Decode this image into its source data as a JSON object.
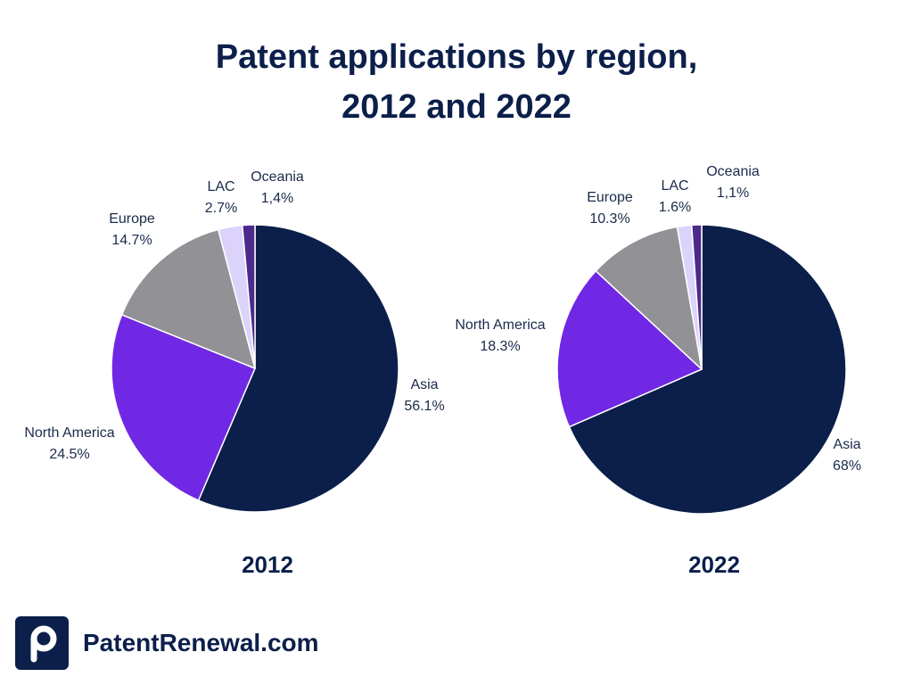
{
  "title_line1": "Patent applications by region,",
  "title_line2": "2012 and 2022",
  "brand": {
    "name": "PatentRenewal.com",
    "icon": "patentrenewal-logo-icon"
  },
  "colors": {
    "Asia": "#0b1f4a",
    "North America": "#7028e4",
    "Europe": "#919196",
    "LAC": "#dcd3fb",
    "Oceania": "#4b2a8c"
  },
  "chart_data": [
    {
      "type": "pie",
      "year_label": "2012",
      "slices": [
        {
          "name": "Asia",
          "value": 56.1,
          "label": "56.1%"
        },
        {
          "name": "North America",
          "value": 24.5,
          "label": "24.5%"
        },
        {
          "name": "Europe",
          "value": 14.7,
          "label": "14.7%"
        },
        {
          "name": "LAC",
          "value": 2.7,
          "label": "2.7%"
        },
        {
          "name": "Oceania",
          "value": 1.4,
          "label": "1,4%"
        }
      ]
    },
    {
      "type": "pie",
      "year_label": "2022",
      "slices": [
        {
          "name": "Asia",
          "value": 68,
          "label": "68%"
        },
        {
          "name": "North America",
          "value": 18.3,
          "label": "18.3%"
        },
        {
          "name": "Europe",
          "value": 10.3,
          "label": "10.3%"
        },
        {
          "name": "LAC",
          "value": 1.6,
          "label": "1.6%"
        },
        {
          "name": "Oceania",
          "value": 1.1,
          "label": "1,1%"
        }
      ]
    }
  ]
}
